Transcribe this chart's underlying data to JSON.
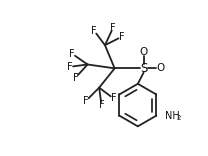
{
  "bg_color": "#ffffff",
  "line_color": "#222222",
  "line_width": 1.3,
  "figsize": [
    2.08,
    1.56
  ],
  "dpi": 100,
  "xlim": [
    0,
    10.5
  ],
  "ylim": [
    0,
    8
  ]
}
